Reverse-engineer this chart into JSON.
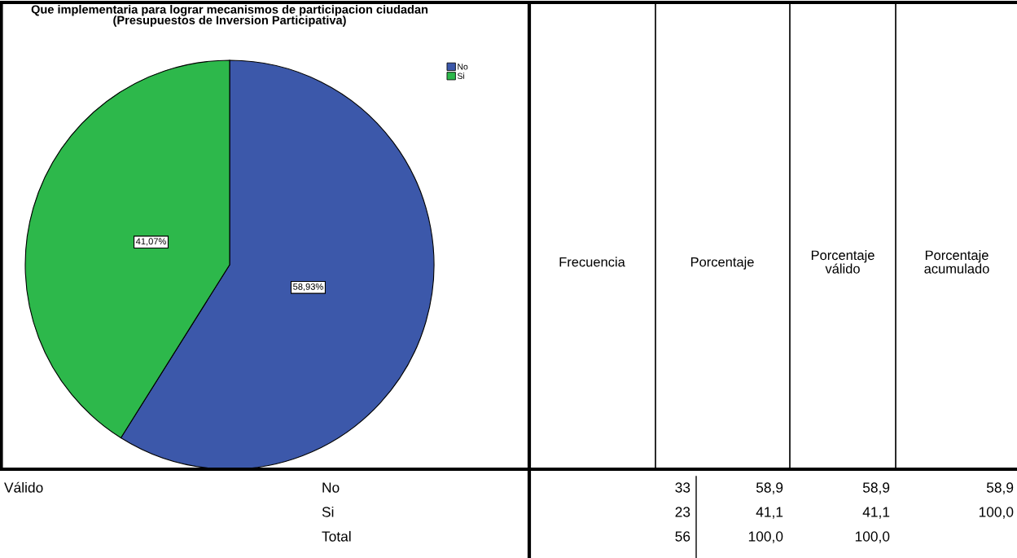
{
  "chart_data": {
    "type": "pie",
    "title": "Que implementaria para lograr mecanismos de participacion ciudadan\n(Presupuestos de Inversion Participativa)",
    "categories": [
      "No",
      "Si"
    ],
    "values": [
      58.93,
      41.07
    ],
    "colors": [
      "#3c58aa",
      "#2db84b"
    ],
    "value_labels": [
      "58,93%",
      "41,07%"
    ],
    "legend": "top right",
    "annotations": [
      "Frecuencia",
      "Porcentaje",
      "Porcentaje\nválido",
      "Porcentaje\nacumulado",
      "Válido",
      "No",
      "33",
      "58,9",
      "58,9",
      "58,9",
      "Si",
      "23",
      "41,1",
      "41,1",
      "100,0",
      "Total",
      "56",
      "100,0",
      "100,0"
    ]
  }
}
